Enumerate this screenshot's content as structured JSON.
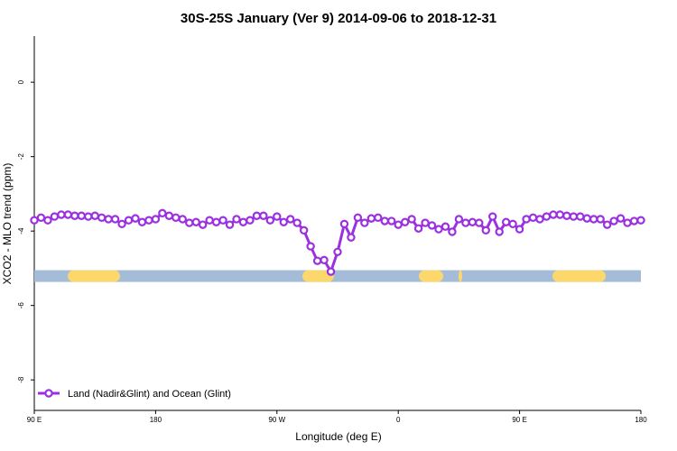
{
  "chart_data": {
    "type": "line",
    "title": "30S-25S January (Ver 9)   2014-09-06 to 2018-12-31",
    "x_label": "Longitude (deg E)",
    "y_label": "XCO2 - MLO trend (ppm)",
    "xlim": [
      90,
      540
    ],
    "xticks": [
      {
        "value": 90,
        "label": "90 E"
      },
      180,
      {
        "value": 270,
        "label": "90 W"
      },
      {
        "value": 360,
        "label": "0"
      },
      {
        "value": 450,
        "label": "90 E"
      },
      {
        "value": 540,
        "label": "180"
      }
    ],
    "ylim": [
      -8.82,
      1.24
    ],
    "yticks": [
      0,
      -2,
      -4,
      -6,
      -8
    ],
    "legend": "bottom-left",
    "x": [
      90,
      95,
      100,
      105,
      110,
      115,
      120,
      125,
      130,
      135,
      140,
      145,
      150,
      155,
      160,
      165,
      170,
      175,
      180,
      185,
      190,
      195,
      200,
      205,
      210,
      215,
      220,
      225,
      230,
      235,
      240,
      245,
      250,
      255,
      260,
      265,
      270,
      275,
      280,
      285,
      290,
      295,
      300,
      305,
      310,
      315,
      320,
      325,
      330,
      335,
      340,
      345,
      350,
      355,
      360,
      365,
      370,
      375,
      380,
      385,
      390,
      395,
      400,
      405,
      410,
      415,
      420,
      425,
      430,
      435,
      440,
      445,
      450,
      455,
      460,
      465,
      470,
      475,
      480,
      485,
      490,
      495,
      500,
      505,
      510,
      515,
      520,
      525,
      530,
      535,
      540
    ],
    "series": [
      {
        "name": "Land (Nadir&Glint) and Ocean (Glint)",
        "color": "#9b30e0",
        "values": [
          -3.71,
          -3.64,
          -3.71,
          -3.61,
          -3.56,
          -3.56,
          -3.59,
          -3.59,
          -3.61,
          -3.59,
          -3.64,
          -3.68,
          -3.68,
          -3.81,
          -3.71,
          -3.66,
          -3.76,
          -3.71,
          -3.68,
          -3.52,
          -3.59,
          -3.64,
          -3.68,
          -3.78,
          -3.76,
          -3.83,
          -3.71,
          -3.76,
          -3.71,
          -3.83,
          -3.68,
          -3.76,
          -3.71,
          -3.59,
          -3.59,
          -3.71,
          -3.61,
          -3.76,
          -3.68,
          -3.78,
          -3.98,
          -4.41,
          -4.8,
          -4.78,
          -5.09,
          -4.56,
          -3.81,
          -4.17,
          -3.64,
          -3.78,
          -3.66,
          -3.64,
          -3.73,
          -3.73,
          -3.83,
          -3.76,
          -3.68,
          -3.93,
          -3.78,
          -3.85,
          -3.95,
          -3.88,
          -4.02,
          -3.68,
          -3.78,
          -3.76,
          -3.78,
          -3.98,
          -3.61,
          -4.02,
          -3.76,
          -3.81,
          -3.95,
          -3.68,
          -3.64,
          -3.68,
          -3.61,
          -3.56,
          -3.56,
          -3.59,
          -3.61,
          -3.61,
          -3.66,
          -3.68,
          -3.68,
          -3.83,
          -3.73,
          -3.66,
          -3.78,
          -3.73,
          -3.71
        ]
      }
    ],
    "land_ocean_band": {
      "y": -5.21,
      "ocean_color": "#a4bcd8",
      "land_color": "#fcd86c",
      "land_ranges": [
        [
          114.8,
          153.6
        ],
        [
          288.9,
          312.3
        ],
        [
          375.3,
          393.4
        ],
        [
          404.7,
          407.4
        ],
        [
          474.4,
          513.9
        ]
      ]
    }
  }
}
